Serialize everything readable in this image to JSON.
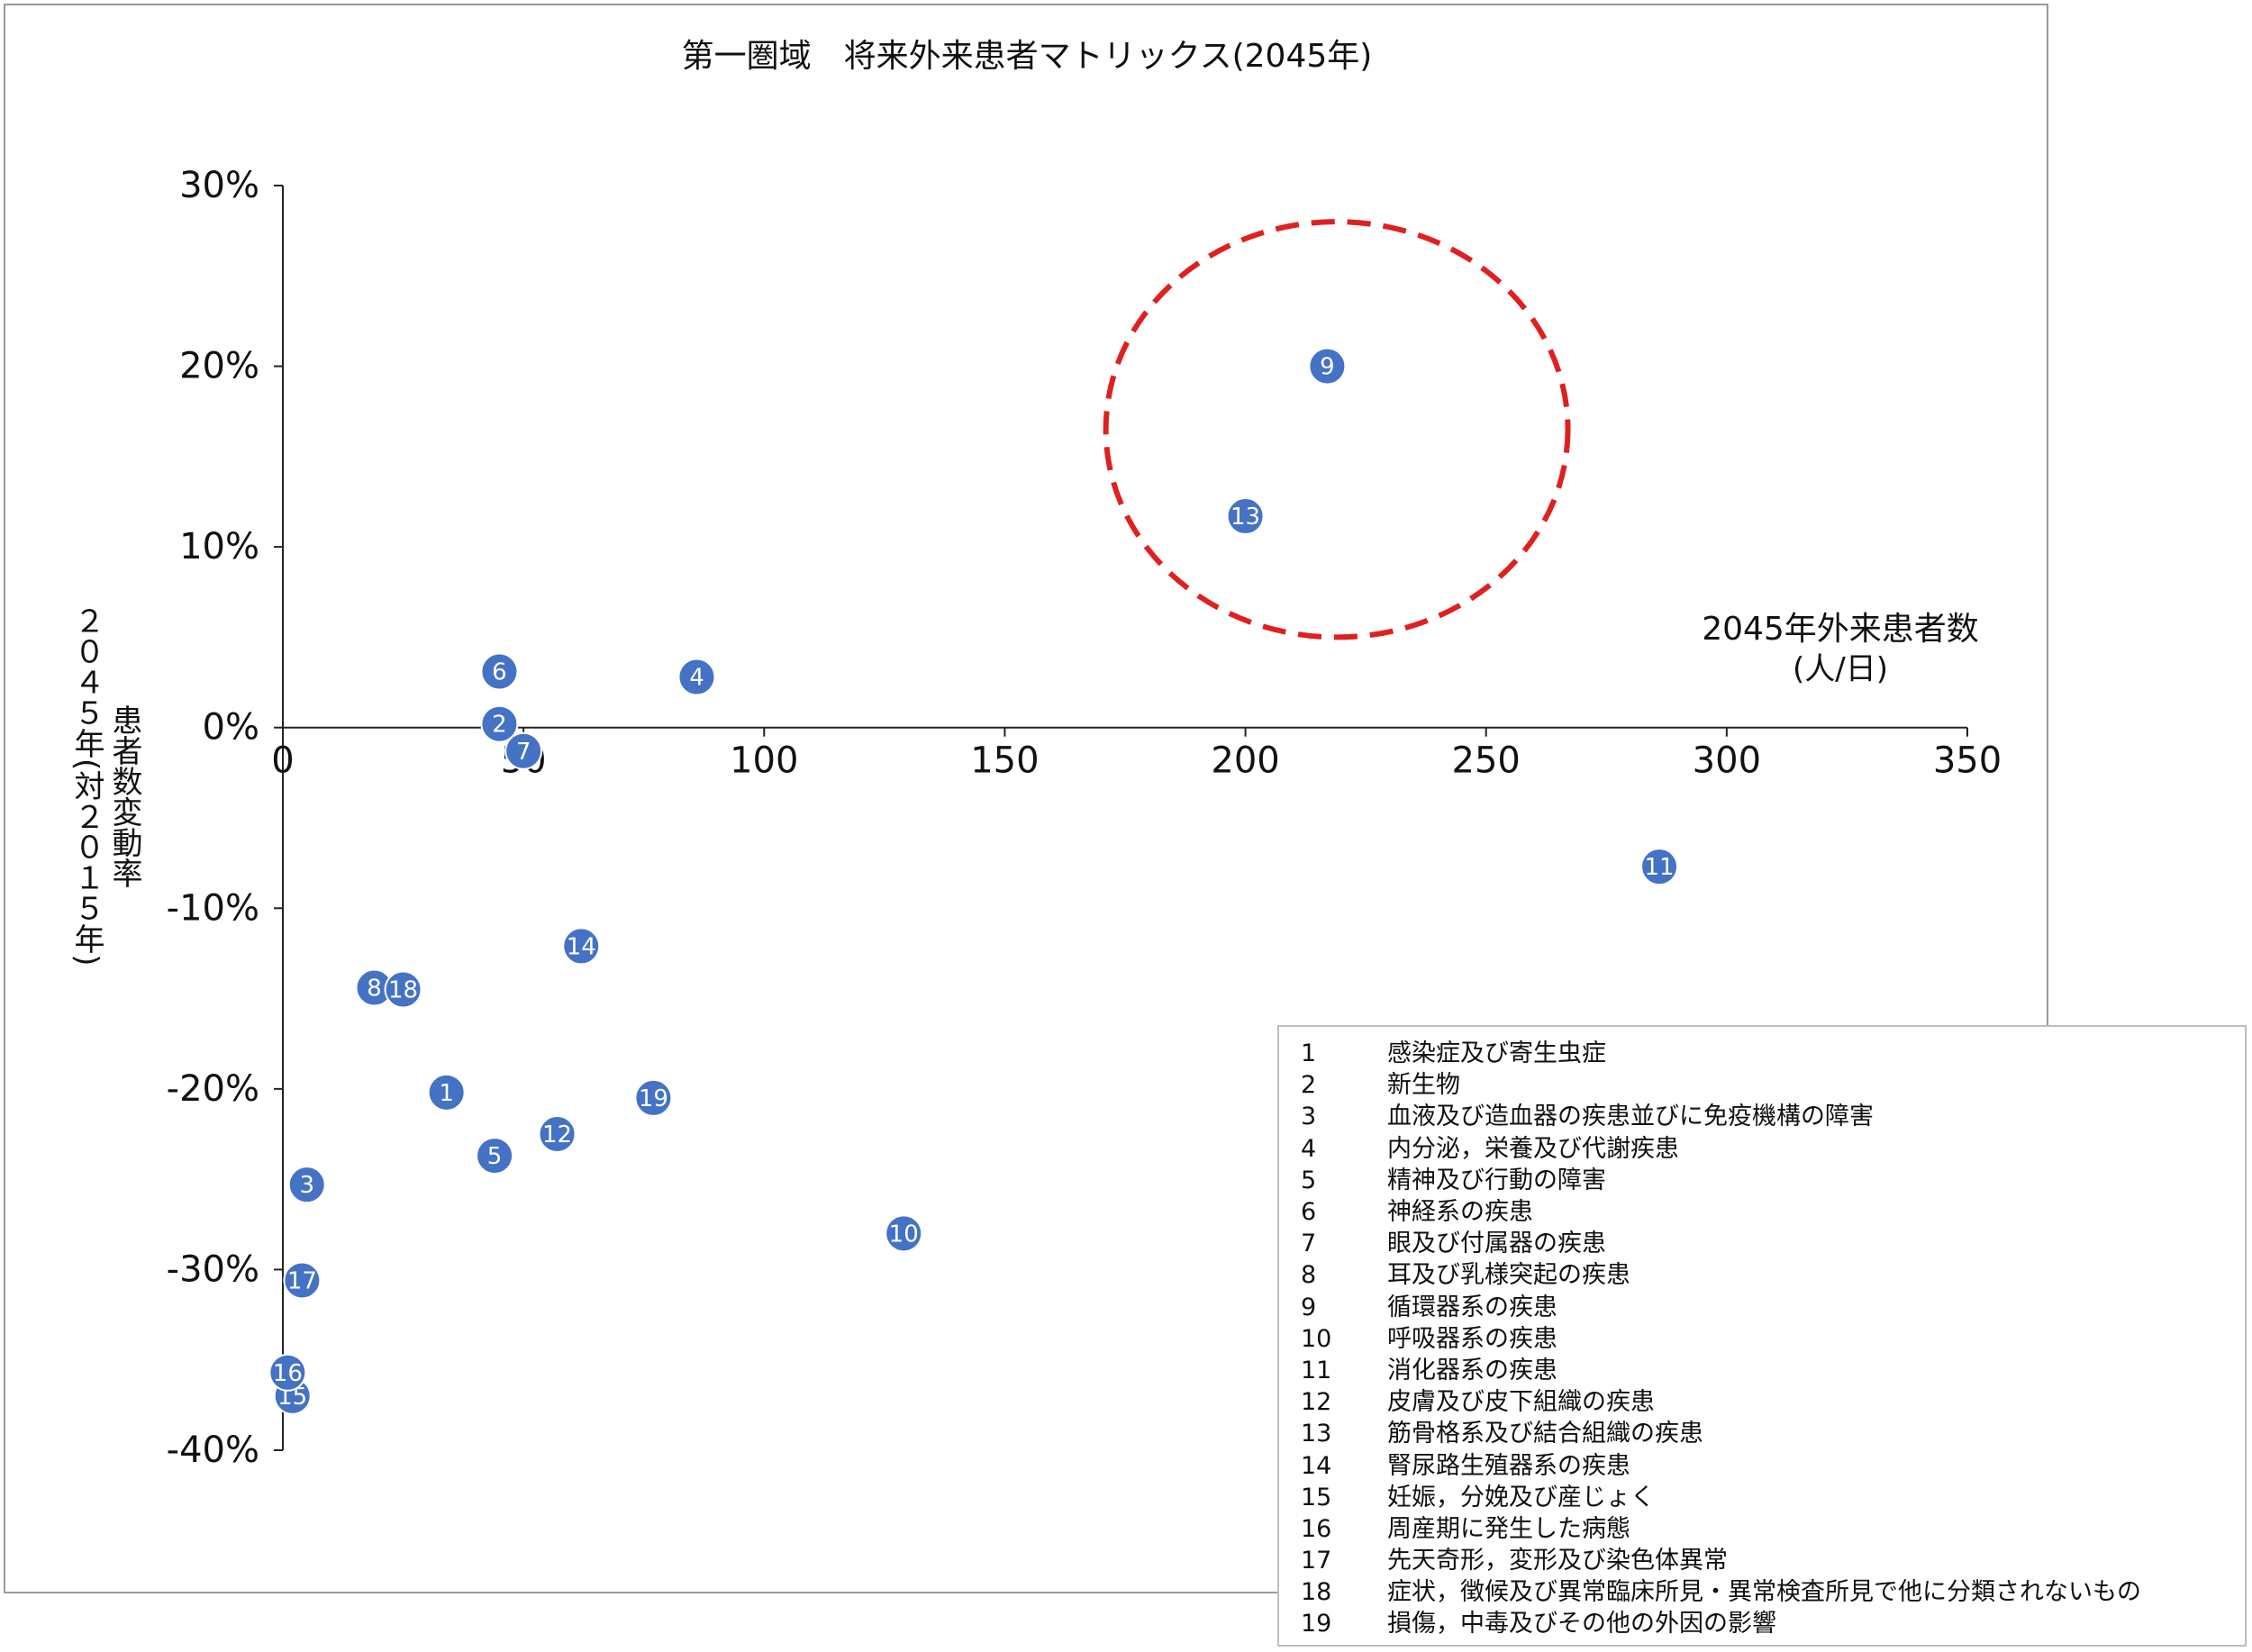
{
  "chart_data": {
    "type": "scatter",
    "title": "第一圏域　将来外来患者マトリックス(2045年)",
    "xlabel_lines": [
      "2045年外来患者数",
      "(人/日)"
    ],
    "ylabel_lines": [
      "２０４５年(対２０１５年)",
      "患者数変動率"
    ],
    "xlim": [
      0,
      350
    ],
    "ylim": [
      -40,
      30
    ],
    "x_ticks": [
      0,
      50,
      100,
      150,
      200,
      250,
      300,
      350
    ],
    "y_ticks": [
      30,
      20,
      10,
      0,
      -10,
      -20,
      -30,
      -40
    ],
    "y_tick_labels": [
      "30%",
      "20%",
      "10%",
      "0%",
      "-10%",
      "-20%",
      "-30%",
      "-40%"
    ],
    "grid": false,
    "marker_color": "#4472C4",
    "highlight_color": "#E02020",
    "highlight_ellipse": {
      "cx": 219,
      "cy": 16.5,
      "rx": 48,
      "ry": 11.5
    },
    "points": [
      {
        "id": "1",
        "x": 34,
        "y": -20.2
      },
      {
        "id": "2",
        "x": 45,
        "y": 0.2
      },
      {
        "id": "3",
        "x": 5,
        "y": -25.3
      },
      {
        "id": "4",
        "x": 86,
        "y": 2.8
      },
      {
        "id": "5",
        "x": 44,
        "y": -23.7
      },
      {
        "id": "6",
        "x": 45,
        "y": 3.1
      },
      {
        "id": "7",
        "x": 50,
        "y": -1.3
      },
      {
        "id": "8",
        "x": 19,
        "y": -14.4
      },
      {
        "id": "9",
        "x": 217,
        "y": 20.0
      },
      {
        "id": "10",
        "x": 129,
        "y": -28.0
      },
      {
        "id": "11",
        "x": 286,
        "y": -7.7
      },
      {
        "id": "12",
        "x": 57,
        "y": -22.5
      },
      {
        "id": "13",
        "x": 200,
        "y": 11.7
      },
      {
        "id": "14",
        "x": 62,
        "y": -12.1
      },
      {
        "id": "15",
        "x": 2,
        "y": -37.0
      },
      {
        "id": "16",
        "x": 1,
        "y": -35.7
      },
      {
        "id": "17",
        "x": 4,
        "y": -30.6
      },
      {
        "id": "18",
        "x": 25,
        "y": -14.5
      },
      {
        "id": "19",
        "x": 77,
        "y": -20.5
      }
    ]
  },
  "legend": [
    {
      "num": "1",
      "label": "感染症及び寄生虫症"
    },
    {
      "num": "2",
      "label": "新生物"
    },
    {
      "num": "3",
      "label": "血液及び造血器の疾患並びに免疫機構の障害"
    },
    {
      "num": "4",
      "label": "内分泌，栄養及び代謝疾患"
    },
    {
      "num": "5",
      "label": "精神及び行動の障害"
    },
    {
      "num": "6",
      "label": "神経系の疾患"
    },
    {
      "num": "7",
      "label": "眼及び付属器の疾患"
    },
    {
      "num": "8",
      "label": "耳及び乳様突起の疾患"
    },
    {
      "num": "9",
      "label": "循環器系の疾患"
    },
    {
      "num": "10",
      "label": "呼吸器系の疾患"
    },
    {
      "num": "11",
      "label": "消化器系の疾患"
    },
    {
      "num": "12",
      "label": "皮膚及び皮下組織の疾患"
    },
    {
      "num": "13",
      "label": "筋骨格系及び結合組織の疾患"
    },
    {
      "num": "14",
      "label": "腎尿路生殖器系の疾患"
    },
    {
      "num": "15",
      "label": "妊娠，分娩及び産じょく"
    },
    {
      "num": "16",
      "label": "周産期に発生した病態"
    },
    {
      "num": "17",
      "label": "先天奇形，変形及び染色体異常"
    },
    {
      "num": "18",
      "label": "症状，徴候及び異常臨床所見・異常検査所見で他に分類されないもの"
    },
    {
      "num": "19",
      "label": "損傷，中毒及びその他の外因の影響"
    }
  ]
}
